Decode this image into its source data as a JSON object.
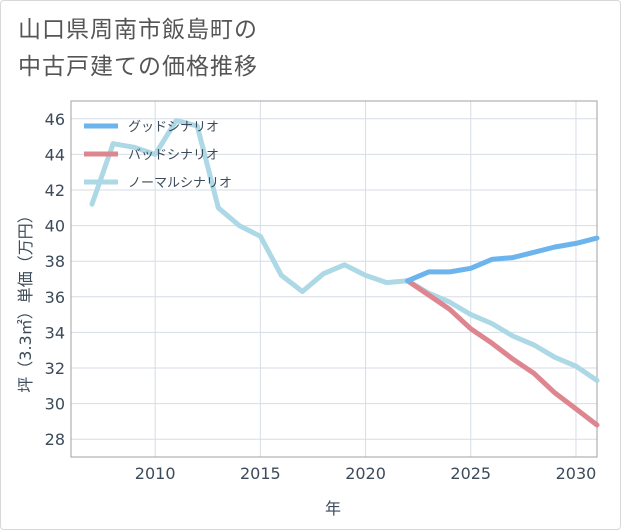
{
  "title": {
    "line1": "山口県周南市飯島町の",
    "line2": "中古戸建ての価格推移"
  },
  "chart_data": {
    "type": "line",
    "xlabel": "年",
    "ylabel": "坪（3.3㎡）単価（万円）",
    "xlim": [
      2006,
      2031
    ],
    "ylim": [
      27,
      47
    ],
    "xticks": [
      2010,
      2015,
      2020,
      2025,
      2030
    ],
    "yticks": [
      28,
      30,
      32,
      34,
      36,
      38,
      40,
      42,
      44,
      46
    ],
    "grid": true,
    "legend_position": "top-left",
    "series": [
      {
        "name": "グッドシナリオ",
        "color": "#6cb4ee",
        "x": [
          2022,
          2023,
          2024,
          2025,
          2026,
          2027,
          2028,
          2029,
          2030,
          2031
        ],
        "y": [
          36.9,
          37.4,
          37.4,
          37.6,
          38.1,
          38.2,
          38.5,
          38.8,
          39.0,
          39.3
        ]
      },
      {
        "name": "バッドシナリオ",
        "color": "#de868f",
        "x": [
          2022,
          2023,
          2024,
          2025,
          2026,
          2027,
          2028,
          2029,
          2030,
          2031
        ],
        "y": [
          36.9,
          36.1,
          35.3,
          34.2,
          33.4,
          32.5,
          31.7,
          30.6,
          29.7,
          28.8
        ]
      },
      {
        "name": "ノーマルシナリオ",
        "color": "#add8e6",
        "x": [
          2007,
          2008,
          2009,
          2010,
          2011,
          2012,
          2013,
          2014,
          2015,
          2016,
          2017,
          2018,
          2019,
          2020,
          2021,
          2022,
          2023,
          2024,
          2025,
          2026,
          2027,
          2028,
          2029,
          2030,
          2031
        ],
        "y": [
          41.2,
          44.6,
          44.4,
          44.0,
          45.9,
          45.6,
          41.0,
          40.0,
          39.4,
          37.2,
          36.3,
          37.3,
          37.8,
          37.2,
          36.8,
          36.9,
          36.2,
          35.7,
          35.0,
          34.5,
          33.8,
          33.3,
          32.6,
          32.1,
          31.3
        ]
      }
    ]
  }
}
